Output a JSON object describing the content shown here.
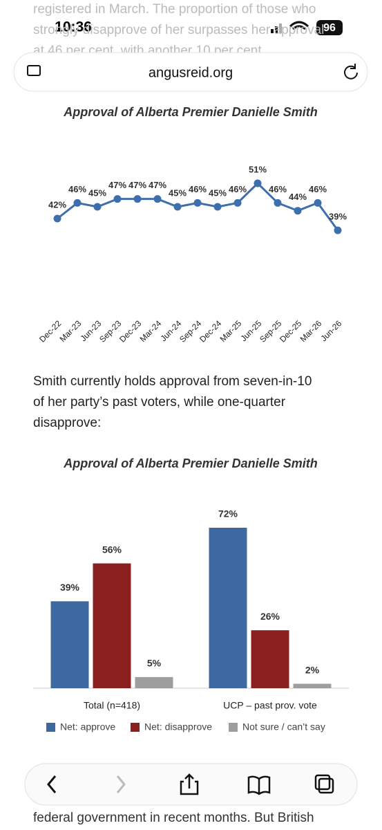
{
  "status_bar": {
    "time": "10:36",
    "battery": "96"
  },
  "address_bar": {
    "url": "angusreid.org"
  },
  "article_top": {
    "lines": [
      "registered in March. The proportion of those who",
      "strongly disapprove of her surpasses her approval",
      "at 46 per cent, with another 10 per cent"
    ]
  },
  "paragraph": {
    "lines": [
      "Smith currently holds approval from seven-in-10",
      "of her party’s past voters, while one-quarter",
      "disapprove:"
    ]
  },
  "article_bottom": {
    "lines": [
      "federal government in recent months. But British"
    ]
  },
  "chart_data": [
    {
      "type": "line",
      "title": "Approval of Alberta Premier Danielle Smith",
      "color": "#3d6fad",
      "categories": [
        "Dec-22",
        "Mar-23",
        "Jun-23",
        "Sep-23",
        "Dec-23",
        "Mar-24",
        "Jun-24",
        "Sep-24",
        "Dec-24",
        "Mar-25",
        "Jun-25",
        "Sep-25",
        "Dec-25",
        "Mar-26",
        "Jun-26"
      ],
      "values": [
        42,
        46,
        45,
        47,
        47,
        47,
        45,
        46,
        45,
        46,
        51,
        46,
        44,
        46,
        39
      ],
      "value_labels": [
        "42%",
        "46%",
        "45%",
        "47%",
        "47%",
        "47%",
        "45%",
        "46%",
        "45%",
        "46%",
        "51%",
        "46%",
        "44%",
        "46%",
        "39%"
      ]
    },
    {
      "type": "bar",
      "title": "Approval of Alberta Premier Danielle Smith",
      "categories": [
        "Total (n=418)",
        "UCP – past prov. vote"
      ],
      "series": [
        {
          "name": "Net: approve",
          "color": "#3e69a0",
          "values": [
            39,
            72
          ],
          "value_labels": [
            "39%",
            "72%"
          ]
        },
        {
          "name": "Net: disapprove",
          "color": "#8a1f1f",
          "values": [
            56,
            26
          ],
          "value_labels": [
            "56%",
            "26%"
          ]
        },
        {
          "name": "Not sure / can’t say",
          "color": "#9e9e9e",
          "values": [
            5,
            2
          ],
          "value_labels": [
            "5%",
            "2%"
          ]
        }
      ]
    }
  ]
}
